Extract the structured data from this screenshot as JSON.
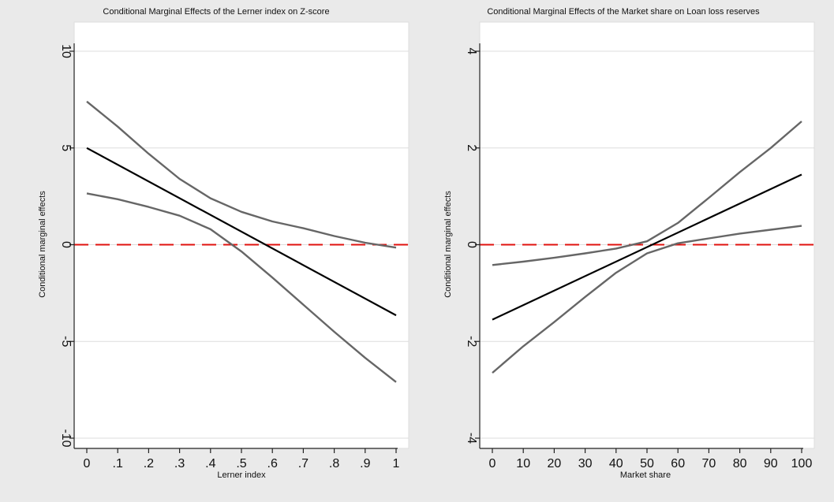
{
  "colors": {
    "page_background": "#eaeaea",
    "plot_background": "#ffffff",
    "gridline": "#dddddd",
    "axis": "#222222",
    "effect_line": "#000000",
    "ci_line": "#666666",
    "zero_line": "#e0120f"
  },
  "chart_data": [
    {
      "type": "line",
      "title": "Conditional Marginal Effects of the Lerner index on Z-score",
      "xlabel": "Lerner index",
      "ylabel": "Conditional marginal effects",
      "xlim": [
        0,
        1
      ],
      "ylim": [
        -10,
        10
      ],
      "grid": true,
      "xticks": [
        0,
        0.1,
        0.2,
        0.3,
        0.4,
        0.5,
        0.6,
        0.7,
        0.8,
        0.9,
        1
      ],
      "xtick_labels": [
        "0",
        ".1",
        ".2",
        ".3",
        ".4",
        ".5",
        ".6",
        ".7",
        ".8",
        ".9",
        "1"
      ],
      "yticks": [
        -10,
        -5,
        0,
        5,
        10
      ],
      "ytick_labels": [
        "-10",
        "-5",
        "0",
        "5",
        "10"
      ],
      "reference_line": {
        "y": 0,
        "style": "dashed",
        "color": "#e0120f"
      },
      "series": [
        {
          "role": "upper",
          "x": [
            0,
            0.1,
            0.2,
            0.3,
            0.4,
            0.5,
            0.6,
            0.7,
            0.8,
            0.9,
            1
          ],
          "y": [
            7.4,
            6.1,
            4.7,
            3.4,
            2.4,
            1.7,
            1.2,
            0.85,
            0.45,
            0.1,
            -0.15
          ]
        },
        {
          "role": "effect",
          "x": [
            0,
            1
          ],
          "y": [
            5.0,
            -3.65
          ]
        },
        {
          "role": "lower",
          "x": [
            0,
            0.1,
            0.2,
            0.3,
            0.4,
            0.5,
            0.6,
            0.7,
            0.8,
            0.9,
            1
          ],
          "y": [
            2.65,
            2.35,
            1.95,
            1.5,
            0.8,
            -0.35,
            -1.7,
            -3.1,
            -4.5,
            -5.85,
            -7.1
          ]
        }
      ]
    },
    {
      "type": "line",
      "title": "Conditional Marginal Effects of the Market share on Loan loss reserves",
      "xlabel": "Market share",
      "ylabel": "Conditional marginal effects",
      "xlim": [
        0,
        100
      ],
      "ylim": [
        -4,
        4
      ],
      "grid": true,
      "xticks": [
        0,
        10,
        20,
        30,
        40,
        50,
        60,
        70,
        80,
        90,
        100
      ],
      "xtick_labels": [
        "0",
        "10",
        "20",
        "30",
        "40",
        "50",
        "60",
        "70",
        "80",
        "90",
        "100"
      ],
      "yticks": [
        -4,
        -2,
        0,
        2,
        4
      ],
      "ytick_labels": [
        "-4",
        "-2",
        "0",
        "2",
        "4"
      ],
      "reference_line": {
        "y": 0,
        "style": "dashed",
        "color": "#e0120f"
      },
      "series": [
        {
          "role": "upper",
          "x": [
            0,
            10,
            20,
            30,
            40,
            50,
            60,
            70,
            80,
            90,
            100
          ],
          "y": [
            -0.42,
            -0.35,
            -0.27,
            -0.18,
            -0.08,
            0.07,
            0.45,
            0.97,
            1.5,
            2.0,
            2.55
          ]
        },
        {
          "role": "effect",
          "x": [
            0,
            100
          ],
          "y": [
            -1.55,
            1.45
          ]
        },
        {
          "role": "lower",
          "x": [
            0,
            10,
            20,
            30,
            40,
            50,
            60,
            70,
            80,
            90,
            100
          ],
          "y": [
            -2.65,
            -2.1,
            -1.6,
            -1.08,
            -0.58,
            -0.18,
            0.03,
            0.13,
            0.23,
            0.31,
            0.39
          ]
        }
      ]
    }
  ]
}
